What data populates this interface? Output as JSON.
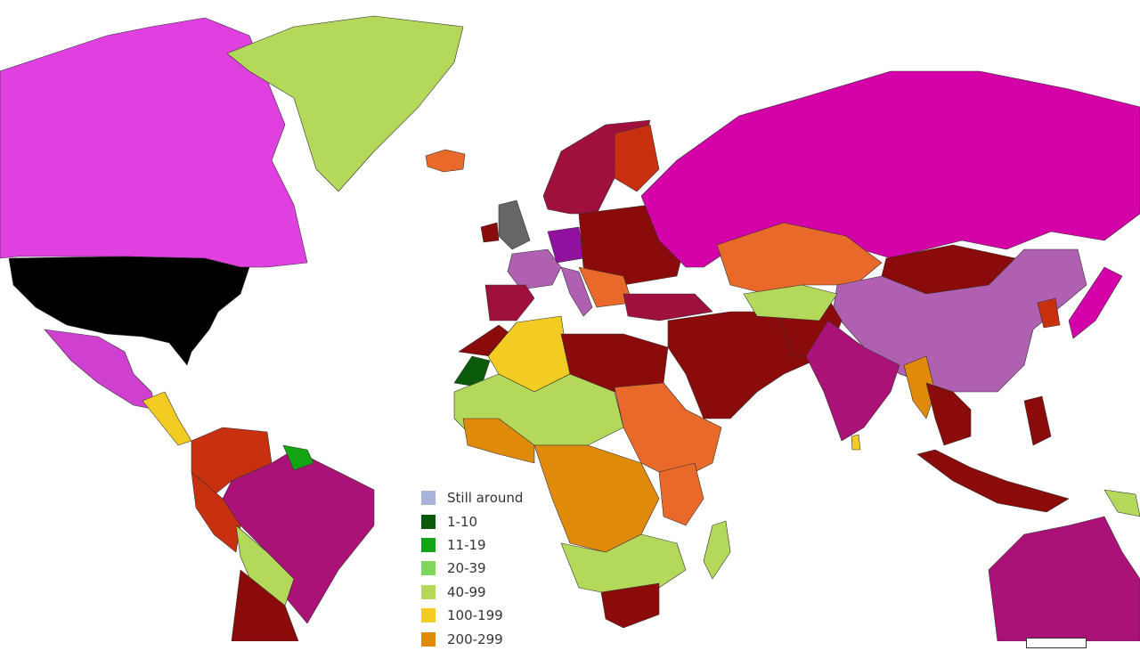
{
  "legend": {
    "items": [
      {
        "label": "Still around",
        "color": "#a9b4dc"
      },
      {
        "label": "1-10",
        "color": "#0b5a0b"
      },
      {
        "label": "11-19",
        "color": "#13a413"
      },
      {
        "label": "20-39",
        "color": "#7fd65a"
      },
      {
        "label": "40-99",
        "color": "#b4d85a"
      },
      {
        "label": "100-199",
        "color": "#f2cc22"
      },
      {
        "label": "200-299",
        "color": "#e08a0a"
      }
    ]
  },
  "map_colors": {
    "orange_red": "#e8692a",
    "red": "#c8300f",
    "dark_red": "#8b0a0a",
    "crimson": "#a0103c",
    "deep_magenta": "#ab1278",
    "mauve": "#b060b0",
    "magenta": "#d400a8",
    "pink_violet": "#e040e0",
    "black": "#000000",
    "gray": "#666666"
  }
}
